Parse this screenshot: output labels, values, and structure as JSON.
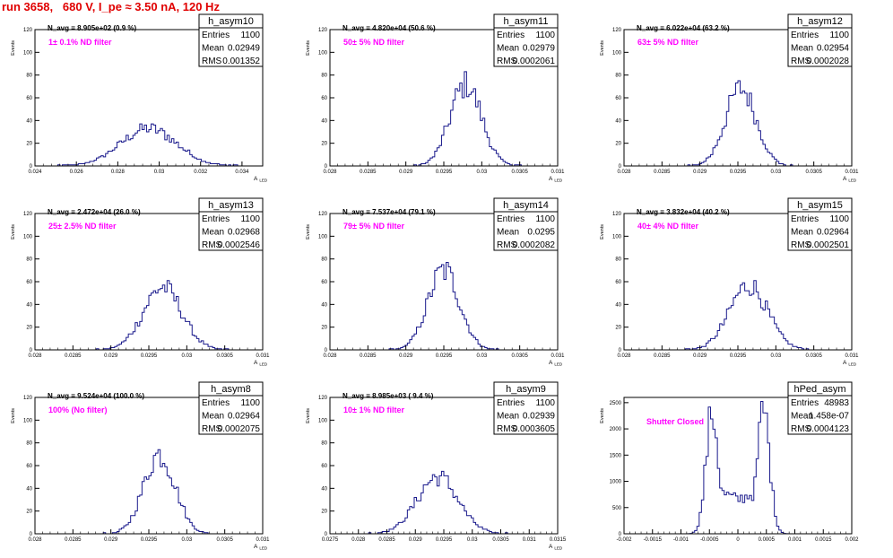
{
  "run_title": "run 3658,   680 V, I_pe ≈ 3.50 nA, 120 Hz",
  "colors": {
    "histogram": "#1a1a8c",
    "annotation": "#ff00ff",
    "title": "#e00000",
    "axis": "#000000"
  },
  "chart_data": [
    {
      "type": "histogram",
      "name": "h_asym10",
      "navg": "N_avg = 8.905e+02 (0.9 %)",
      "filter": "1± 0.1% ND filter",
      "stats": {
        "Entries": "1100",
        "Mean": "0.02949",
        "RMS": "0.001352"
      },
      "xlim": [
        0.024,
        0.035
      ],
      "ylim": [
        0,
        120
      ],
      "xticks": [
        0.024,
        0.026,
        0.028,
        0.03,
        0.032,
        0.034
      ],
      "xticklabels": [
        "0.024",
        "0.026",
        "0.028",
        "0.03",
        "0.032",
        "0.034"
      ],
      "yticks": [
        0,
        20,
        40,
        60,
        80,
        100,
        120
      ],
      "ylabel": "Events",
      "xlabel": "A_LED",
      "peaks": [
        {
          "mu": 0.02949,
          "sigma": 0.001352,
          "amp": 33
        }
      ]
    },
    {
      "type": "histogram",
      "name": "h_asym11",
      "navg": "N_avg = 4.820e+04 (50.6 %)",
      "filter": "50± 5% ND filter",
      "stats": {
        "Entries": "1100",
        "Mean": "0.02979",
        "RMS": "0.0002061"
      },
      "xlim": [
        0.028,
        0.031
      ],
      "ylim": [
        0,
        120
      ],
      "xticks": [
        0.028,
        0.0285,
        0.029,
        0.0295,
        0.03,
        0.0305,
        0.031
      ],
      "xticklabels": [
        "0.028",
        "0.0285",
        "0.029",
        "0.0295",
        "0.03",
        "0.0305",
        "0.031"
      ],
      "yticks": [
        0,
        20,
        40,
        60,
        80,
        100,
        120
      ],
      "ylabel": "Events",
      "xlabel": "A_LED",
      "peaks": [
        {
          "mu": 0.02979,
          "sigma": 0.0002061,
          "amp": 72
        }
      ]
    },
    {
      "type": "histogram",
      "name": "h_asym12",
      "navg": "N_avg = 6.022e+04 (63.2 %)",
      "filter": "63± 5% ND filter",
      "stats": {
        "Entries": "1100",
        "Mean": "0.02954",
        "RMS": "0.0002028"
      },
      "xlim": [
        0.028,
        0.031
      ],
      "ylim": [
        0,
        120
      ],
      "xticks": [
        0.028,
        0.0285,
        0.029,
        0.0295,
        0.03,
        0.0305,
        0.031
      ],
      "xticklabels": [
        "0.028",
        "0.0285",
        "0.029",
        "0.0295",
        "0.03",
        "0.0305",
        "0.031"
      ],
      "yticks": [
        0,
        20,
        40,
        60,
        80,
        100,
        120
      ],
      "ylabel": "Events",
      "xlabel": "A_LED",
      "peaks": [
        {
          "mu": 0.02954,
          "sigma": 0.0002028,
          "amp": 68
        }
      ]
    },
    {
      "type": "histogram",
      "name": "h_asym13",
      "navg": "N_avg = 2.472e+04 (26.0 %)",
      "filter": "25± 2.5% ND filter",
      "stats": {
        "Entries": "1100",
        "Mean": "0.02968",
        "RMS": "0.0002546"
      },
      "xlim": [
        0.028,
        0.031
      ],
      "ylim": [
        0,
        120
      ],
      "xticks": [
        0.028,
        0.0285,
        0.029,
        0.0295,
        0.03,
        0.0305,
        0.031
      ],
      "xticklabels": [
        "0.028",
        "0.0285",
        "0.029",
        "0.0295",
        "0.03",
        "0.0305",
        "0.031"
      ],
      "yticks": [
        0,
        20,
        40,
        60,
        80,
        100,
        120
      ],
      "ylabel": "Events",
      "xlabel": "A_LED",
      "peaks": [
        {
          "mu": 0.02968,
          "sigma": 0.0002546,
          "amp": 55
        }
      ]
    },
    {
      "type": "histogram",
      "name": "h_asym14",
      "navg": "N_avg = 7.537e+04 (79.1 %)",
      "filter": "79± 5% ND filter",
      "stats": {
        "Entries": "1100",
        "Mean": "0.0295",
        "RMS": "0.0002082"
      },
      "xlim": [
        0.028,
        0.031
      ],
      "ylim": [
        0,
        120
      ],
      "xticks": [
        0.028,
        0.0285,
        0.029,
        0.0295,
        0.03,
        0.0305,
        0.031
      ],
      "xticklabels": [
        "0.028",
        "0.0285",
        "0.029",
        "0.0295",
        "0.03",
        "0.0305",
        "0.031"
      ],
      "yticks": [
        0,
        20,
        40,
        60,
        80,
        100,
        120
      ],
      "ylabel": "Events",
      "xlabel": "A_LED",
      "peaks": [
        {
          "mu": 0.0295,
          "sigma": 0.0002082,
          "amp": 70
        }
      ]
    },
    {
      "type": "histogram",
      "name": "h_asym15",
      "navg": "N_avg = 3.832e+04 (40.2 %)",
      "filter": "40± 4% ND filter",
      "stats": {
        "Entries": "1100",
        "Mean": "0.02964",
        "RMS": "0.0002501"
      },
      "xlim": [
        0.028,
        0.031
      ],
      "ylim": [
        0,
        120
      ],
      "xticks": [
        0.028,
        0.0285,
        0.029,
        0.0295,
        0.03,
        0.0305,
        0.031
      ],
      "xticklabels": [
        "0.028",
        "0.0285",
        "0.029",
        "0.0295",
        "0.03",
        "0.0305",
        "0.031"
      ],
      "yticks": [
        0,
        20,
        40,
        60,
        80,
        100,
        120
      ],
      "ylabel": "Events",
      "xlabel": "A_LED",
      "peaks": [
        {
          "mu": 0.02964,
          "sigma": 0.0002501,
          "amp": 57
        }
      ]
    },
    {
      "type": "histogram",
      "name": "h_asym8",
      "navg": "N_avg = 9.524e+04 (100.0 %)",
      "filter": "100% (No filter)",
      "stats": {
        "Entries": "1100",
        "Mean": "0.02964",
        "RMS": "0.0002075"
      },
      "xlim": [
        0.028,
        0.031
      ],
      "ylim": [
        0,
        120
      ],
      "xticks": [
        0.028,
        0.0285,
        0.029,
        0.0295,
        0.03,
        0.0305,
        0.031
      ],
      "xticklabels": [
        "0.028",
        "0.0285",
        "0.029",
        "0.0295",
        "0.03",
        "0.0305",
        "0.031"
      ],
      "yticks": [
        0,
        20,
        40,
        60,
        80,
        100,
        120
      ],
      "ylabel": "Events",
      "xlabel": "A_LED",
      "peaks": [
        {
          "mu": 0.02964,
          "sigma": 0.0002075,
          "amp": 70
        }
      ]
    },
    {
      "type": "histogram",
      "name": "h_asym9",
      "navg": "N_avg = 8.985e+03 ( 9.4 %)",
      "filter": "10± 1% ND filter",
      "stats": {
        "Entries": "1100",
        "Mean": "0.02939",
        "RMS": "0.0003605"
      },
      "xlim": [
        0.0275,
        0.0315
      ],
      "ylim": [
        0,
        120
      ],
      "xticks": [
        0.0275,
        0.028,
        0.0285,
        0.029,
        0.0295,
        0.03,
        0.0305,
        0.031,
        0.0315
      ],
      "xticklabels": [
        "0.0275",
        "0.028",
        "0.0285",
        "0.029",
        "0.0295",
        "0.03",
        "0.0305",
        "0.031",
        "0.0315"
      ],
      "yticks": [
        0,
        20,
        40,
        60,
        80,
        100,
        120
      ],
      "ylabel": "Events",
      "xlabel": "A_LED",
      "peaks": [
        {
          "mu": 0.02939,
          "sigma": 0.0003605,
          "amp": 50
        }
      ]
    },
    {
      "type": "histogram",
      "name": "hPed_asym",
      "navg": "",
      "filter": "Shutter Closed",
      "stats": {
        "Entries": "48983",
        "Mean": "1.458e-07",
        "RMS": "0.0004123"
      },
      "xlim": [
        -0.002,
        0.002
      ],
      "ylim": [
        0,
        2600
      ],
      "xticks": [
        -0.002,
        -0.0015,
        -0.001,
        -0.0005,
        0,
        0.0005,
        0.001,
        0.0015,
        0.002
      ],
      "xticklabels": [
        "-0.002",
        "-0.0015",
        "-0.001",
        "-0.0005",
        "0",
        "0.0005",
        "0.001",
        "0.0015",
        "0.002"
      ],
      "yticks": [
        0,
        500,
        1000,
        1500,
        2000,
        2500
      ],
      "ylabel": "Events",
      "xlabel": "",
      "peaks": [
        {
          "mu": -0.00045,
          "sigma": 0.00011,
          "amp": 2300
        },
        {
          "mu": 0.00045,
          "sigma": 0.00011,
          "amp": 2350
        }
      ],
      "floor": 650
    }
  ]
}
